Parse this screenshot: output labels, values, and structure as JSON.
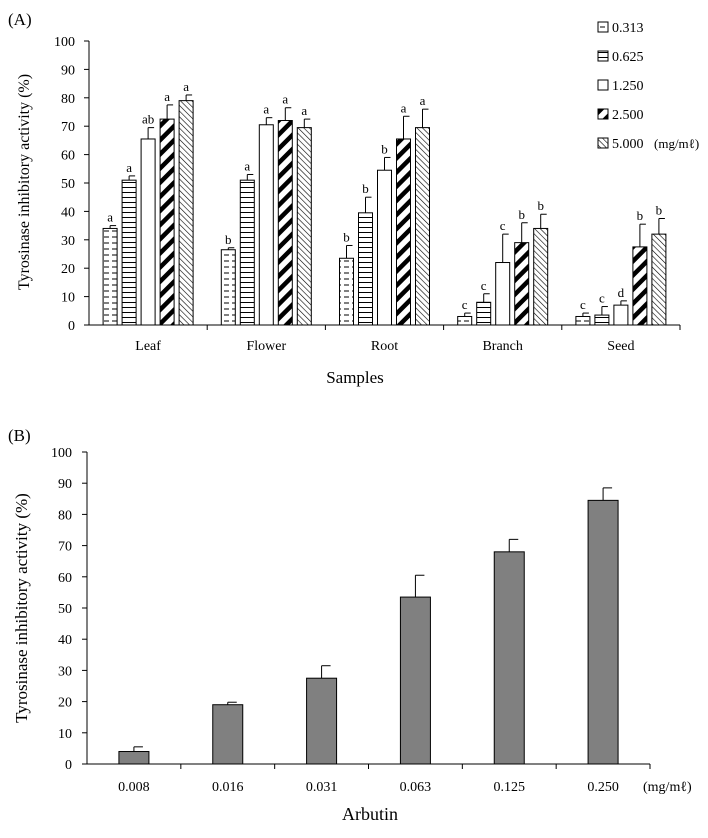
{
  "panel_a_label": "(A)",
  "panel_b_label": "(B)",
  "colors": {
    "bar_b": "#808080",
    "axis": "#000000",
    "background": "#ffffff"
  },
  "chart_data": [
    {
      "type": "bar",
      "panel": "(A)",
      "title": "",
      "xlabel": "Samples",
      "ylabel": "Tyrosinase inhibitory activity (%)",
      "ylim": [
        0,
        100
      ],
      "yticks": [
        0,
        10,
        20,
        30,
        40,
        50,
        60,
        70,
        80,
        90,
        100
      ],
      "grid": false,
      "legend_position": "top-right",
      "legend_unit": "(mg/mℓ)",
      "categories": [
        "Leaf",
        "Flower",
        "Root",
        "Branch",
        "Seed"
      ],
      "series": [
        {
          "name": "0.313",
          "pattern": "dashed-horizontal",
          "values": [
            34,
            26.5,
            23.5,
            3,
            3
          ],
          "errors": [
            1,
            0.7,
            4.5,
            1.2,
            1.2
          ],
          "labels": [
            "a",
            "b",
            "b",
            "c",
            "c"
          ]
        },
        {
          "name": "0.625",
          "pattern": "horizontal-lines",
          "values": [
            51,
            51,
            39.5,
            8,
            3.5
          ],
          "errors": [
            1.5,
            2,
            5.5,
            3,
            3
          ],
          "labels": [
            "a",
            "a",
            "b",
            "c",
            "c"
          ]
        },
        {
          "name": "1.250",
          "pattern": "white",
          "values": [
            65.5,
            70.5,
            54.5,
            22,
            7
          ],
          "errors": [
            4,
            2.5,
            4.5,
            10,
            1.5
          ],
          "labels": [
            "ab",
            "a",
            "b",
            "c",
            "d"
          ]
        },
        {
          "name": "2.500",
          "pattern": "bold-diagonal",
          "values": [
            72.5,
            72,
            65.5,
            29,
            27.5
          ],
          "errors": [
            5,
            4.5,
            8,
            7,
            8
          ],
          "labels": [
            "a",
            "a",
            "a",
            "b",
            "b"
          ]
        },
        {
          "name": "5.000",
          "pattern": "fine-diagonal",
          "values": [
            79,
            69.5,
            69.5,
            34,
            32
          ],
          "errors": [
            2,
            3,
            6.5,
            5,
            5.5
          ],
          "labels": [
            "a",
            "a",
            "a",
            "b",
            "b"
          ]
        }
      ]
    },
    {
      "type": "bar",
      "panel": "(B)",
      "title": "",
      "xlabel": "Arbutin",
      "ylabel": "Tyrosinase inhibitory activity (%)",
      "ylim": [
        0,
        100
      ],
      "yticks": [
        0,
        10,
        20,
        30,
        40,
        50,
        60,
        70,
        80,
        90,
        100
      ],
      "grid": false,
      "x_unit": "(mg/mℓ)",
      "categories": [
        "0.008",
        "0.016",
        "0.031",
        "0.063",
        "0.125",
        "0.250"
      ],
      "values": [
        4,
        19,
        27.5,
        53.5,
        68,
        84.5
      ],
      "errors": [
        1.5,
        0.8,
        4,
        7,
        4,
        4
      ]
    }
  ]
}
